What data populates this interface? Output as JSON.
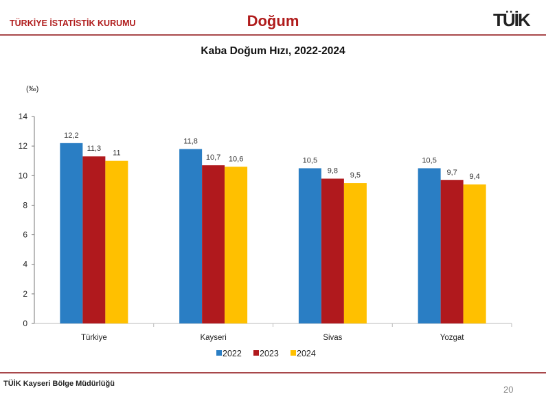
{
  "header": {
    "org": "TÜRKİYE İSTATİSTİK KURUMU",
    "title": "Doğum",
    "logo": "TÜİK"
  },
  "footer": {
    "office": "TÜİK Kayseri Bölge Müdürlüğü",
    "page": "20"
  },
  "chart_data": {
    "type": "bar",
    "title": "Kaba Doğum Hızı, 2022-2024",
    "ylabel": "(‰)",
    "xlabel": "",
    "ylim": [
      0,
      14
    ],
    "yticks": [
      0,
      2,
      4,
      6,
      8,
      10,
      12,
      14
    ],
    "categories": [
      "Türkiye",
      "Kayseri",
      "Sivas",
      "Yozgat"
    ],
    "series": [
      {
        "name": "2022",
        "color": "#2a7ec4",
        "values": [
          12.2,
          11.8,
          10.5,
          10.5
        ],
        "labels": [
          "12,2",
          "11,8",
          "10,5",
          "10,5"
        ]
      },
      {
        "name": "2023",
        "color": "#b0191d",
        "values": [
          11.3,
          10.7,
          9.8,
          9.7
        ],
        "labels": [
          "11,3",
          "10,7",
          "9,8",
          "9,7"
        ]
      },
      {
        "name": "2024",
        "color": "#ffc000",
        "values": [
          11,
          10.6,
          9.5,
          9.4
        ],
        "labels": [
          "11",
          "10,6",
          "9,5",
          "9,4"
        ]
      }
    ],
    "grid": false,
    "legend": "bottom"
  }
}
